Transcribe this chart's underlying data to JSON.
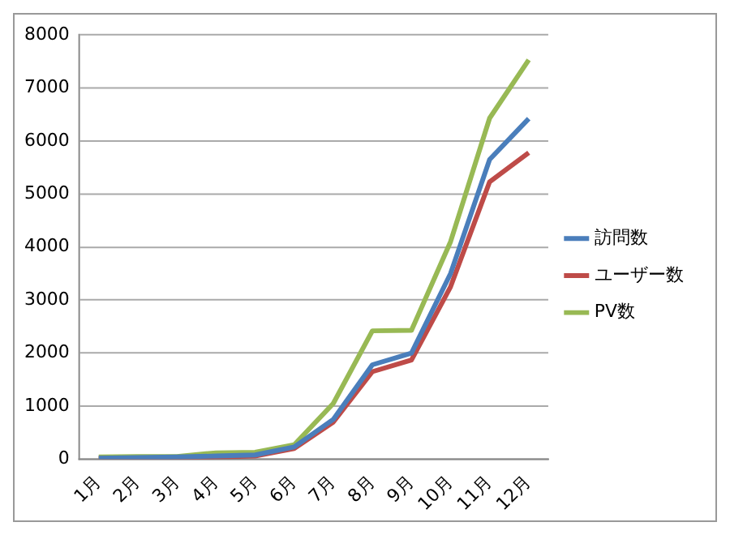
{
  "chart_data": {
    "type": "line",
    "categories": [
      "1月",
      "2月",
      "3月",
      "4月",
      "5月",
      "6月",
      "7月",
      "8月",
      "9月",
      "10月",
      "11月",
      "12月"
    ],
    "series": [
      {
        "name": "訪問数",
        "color": "#4a7ebb",
        "values": [
          20,
          30,
          40,
          60,
          80,
          230,
          750,
          1780,
          2000,
          3500,
          5650,
          6420
        ]
      },
      {
        "name": "ユーザー数",
        "color": "#be4b48",
        "values": [
          10,
          20,
          30,
          40,
          60,
          200,
          700,
          1650,
          1870,
          3250,
          5230,
          5780
        ]
      },
      {
        "name": "PV数",
        "color": "#98b954",
        "values": [
          40,
          50,
          50,
          120,
          130,
          270,
          1050,
          2420,
          2430,
          4100,
          6430,
          7530
        ]
      }
    ],
    "ylim": [
      0,
      8000
    ],
    "yticks": [
      0,
      1000,
      2000,
      3000,
      4000,
      5000,
      6000,
      7000,
      8000
    ],
    "grid": "y",
    "legend": "right",
    "marker": "none"
  }
}
